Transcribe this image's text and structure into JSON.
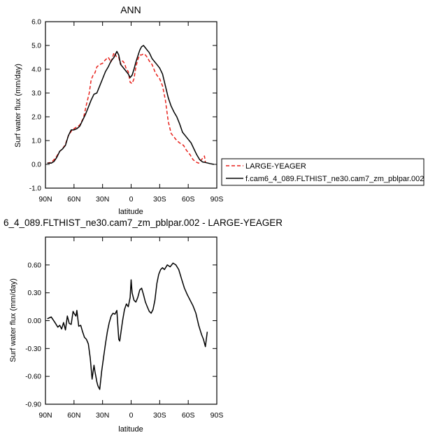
{
  "chart_data": [
    {
      "type": "line",
      "title": "ANN",
      "xlabel": "latitude",
      "ylabel": "Surf water flux (mm/day)",
      "xlim": [
        -90,
        90
      ],
      "ylim": [
        -1.0,
        6.0
      ],
      "x_ticks": [
        -90,
        -60,
        -30,
        0,
        30,
        60,
        90
      ],
      "x_tick_labels": [
        "90N",
        "60N",
        "30N",
        "0",
        "30S",
        "60S",
        "90S"
      ],
      "y_ticks": [
        -1,
        0,
        1,
        2,
        3,
        4,
        5,
        6
      ],
      "y_tick_labels": [
        "-1.0",
        "0.0",
        "1.0",
        "2.0",
        "3.0",
        "4.0",
        "5.0",
        "6.0"
      ],
      "legend_position": "right",
      "series": [
        {
          "name": "LARGE-YEAGER",
          "color": "#e8211b",
          "dash": "dashed",
          "x": [
            -88,
            -84,
            -81,
            -78,
            -75,
            -72,
            -69,
            -66,
            -62,
            -58,
            -54,
            -50,
            -47,
            -44,
            -42,
            -40,
            -38,
            -36,
            -33,
            -30,
            -27,
            -24,
            -21,
            -18,
            -15,
            -13,
            -11,
            -9,
            -7,
            -5,
            -3,
            -1,
            1,
            3,
            5,
            7,
            9,
            11,
            13,
            15,
            17,
            19,
            22,
            25,
            27,
            30,
            33,
            36,
            39,
            42,
            45,
            48,
            51,
            55,
            58,
            62,
            65,
            68,
            71,
            74,
            76,
            77,
            78
          ],
          "y": [
            0.05,
            0.08,
            0.2,
            0.35,
            0.55,
            0.65,
            0.85,
            1.2,
            1.45,
            1.55,
            1.65,
            1.95,
            2.5,
            3.0,
            3.55,
            3.75,
            3.85,
            4.1,
            4.2,
            4.25,
            4.4,
            4.5,
            4.3,
            4.7,
            4.5,
            4.5,
            4.2,
            4.35,
            4.25,
            4.0,
            3.9,
            3.45,
            3.4,
            3.6,
            4.1,
            4.4,
            4.6,
            4.6,
            4.65,
            4.6,
            4.5,
            4.35,
            4.2,
            3.9,
            3.75,
            3.6,
            3.3,
            2.7,
            1.8,
            1.3,
            1.15,
            1.0,
            0.9,
            0.8,
            0.6,
            0.4,
            0.2,
            0.1,
            0.05,
            0.2,
            0.3,
            0.35,
            0.1
          ]
        },
        {
          "name": "f.cam6_4_089.FLTHIST_ne30.cam7_zm_pblpar.002",
          "color": "#000000",
          "dash": "solid",
          "x": [
            -88,
            -84,
            -81,
            -78,
            -75,
            -72,
            -69,
            -66,
            -63,
            -60,
            -57,
            -54,
            -51,
            -48,
            -45,
            -42,
            -39,
            -36,
            -33,
            -30,
            -27,
            -24,
            -21,
            -18,
            -15,
            -13,
            -11,
            -9,
            -7,
            -5,
            -3,
            -1,
            1,
            3,
            5,
            7,
            9,
            11,
            13,
            15,
            17,
            19,
            22,
            25,
            27,
            30,
            33,
            36,
            39,
            42,
            45,
            48,
            51,
            54,
            57,
            60,
            63,
            66,
            69,
            72,
            75,
            78,
            81,
            84,
            87
          ],
          "y": [
            0.05,
            0.05,
            0.12,
            0.3,
            0.55,
            0.65,
            0.8,
            1.2,
            1.45,
            1.45,
            1.5,
            1.6,
            1.85,
            2.1,
            2.4,
            2.7,
            2.95,
            3.0,
            3.3,
            3.6,
            3.9,
            4.1,
            4.35,
            4.5,
            4.75,
            4.6,
            4.2,
            4.1,
            4.0,
            3.9,
            3.8,
            3.65,
            3.75,
            4.0,
            4.3,
            4.55,
            4.8,
            4.95,
            5.0,
            4.9,
            4.8,
            4.7,
            4.45,
            4.3,
            4.2,
            4.05,
            3.8,
            3.3,
            2.8,
            2.45,
            2.2,
            2.0,
            1.7,
            1.35,
            1.2,
            1.05,
            0.9,
            0.65,
            0.4,
            0.2,
            0.1,
            0.08,
            0.05,
            0.02,
            0.0
          ]
        }
      ]
    },
    {
      "type": "line",
      "title": "6_4_089.FLTHIST_ne30.cam7_zm_pblpar.002 - LARGE-YEAGER",
      "xlabel": "latitude",
      "ylabel": "Surf water flux (mm/day)",
      "xlim": [
        -90,
        90
      ],
      "ylim": [
        -0.9,
        0.9
      ],
      "x_ticks": [
        -90,
        -60,
        -30,
        0,
        30,
        60,
        90
      ],
      "x_tick_labels": [
        "90N",
        "60N",
        "30N",
        "0",
        "30S",
        "60S",
        "90S"
      ],
      "y_ticks": [
        -0.9,
        -0.6,
        -0.3,
        0.0,
        0.3,
        0.6
      ],
      "y_tick_labels": [
        "-0.90",
        "-0.60",
        "-0.30",
        "0.00",
        "0.30",
        "0.60"
      ],
      "series": [
        {
          "color": "#000000",
          "x": [
            -88,
            -84,
            -80,
            -77,
            -75,
            -73,
            -71,
            -69,
            -67,
            -65,
            -63,
            -61,
            -60,
            -58,
            -57,
            -56,
            -55,
            -53,
            -51,
            -49,
            -47,
            -45,
            -43,
            -41,
            -39,
            -38,
            -37,
            -36,
            -35,
            -34,
            -33,
            -31,
            -29,
            -27,
            -25,
            -23,
            -21,
            -19,
            -17,
            -15,
            -13,
            -12,
            -11,
            -9,
            -7,
            -5,
            -3,
            -1,
            0,
            1,
            3,
            5,
            7,
            9,
            11,
            13,
            15,
            17,
            19,
            21,
            23,
            25,
            27,
            29,
            31,
            33,
            35,
            38,
            41,
            44,
            47,
            50,
            53,
            56,
            59,
            62,
            65,
            68,
            71,
            74,
            76,
            78,
            79,
            80
          ],
          "y": [
            0.02,
            0.04,
            -0.02,
            -0.07,
            -0.05,
            -0.09,
            -0.02,
            -0.1,
            0.05,
            -0.03,
            -0.04,
            0.1,
            0.08,
            0.05,
            0.11,
            0.02,
            -0.06,
            -0.05,
            -0.12,
            -0.18,
            -0.2,
            -0.25,
            -0.4,
            -0.63,
            -0.48,
            -0.55,
            -0.6,
            -0.66,
            -0.7,
            -0.72,
            -0.74,
            -0.55,
            -0.4,
            -0.25,
            -0.12,
            -0.02,
            0.05,
            0.08,
            0.07,
            0.11,
            -0.2,
            -0.22,
            -0.15,
            0.0,
            0.12,
            0.18,
            0.15,
            0.25,
            0.44,
            0.3,
            0.22,
            0.2,
            0.25,
            0.33,
            0.35,
            0.28,
            0.2,
            0.15,
            0.1,
            0.08,
            0.12,
            0.22,
            0.4,
            0.5,
            0.55,
            0.57,
            0.55,
            0.6,
            0.58,
            0.62,
            0.6,
            0.55,
            0.45,
            0.35,
            0.28,
            0.22,
            0.16,
            0.08,
            -0.05,
            -0.15,
            -0.2,
            -0.28,
            -0.2,
            -0.12
          ]
        }
      ]
    }
  ]
}
